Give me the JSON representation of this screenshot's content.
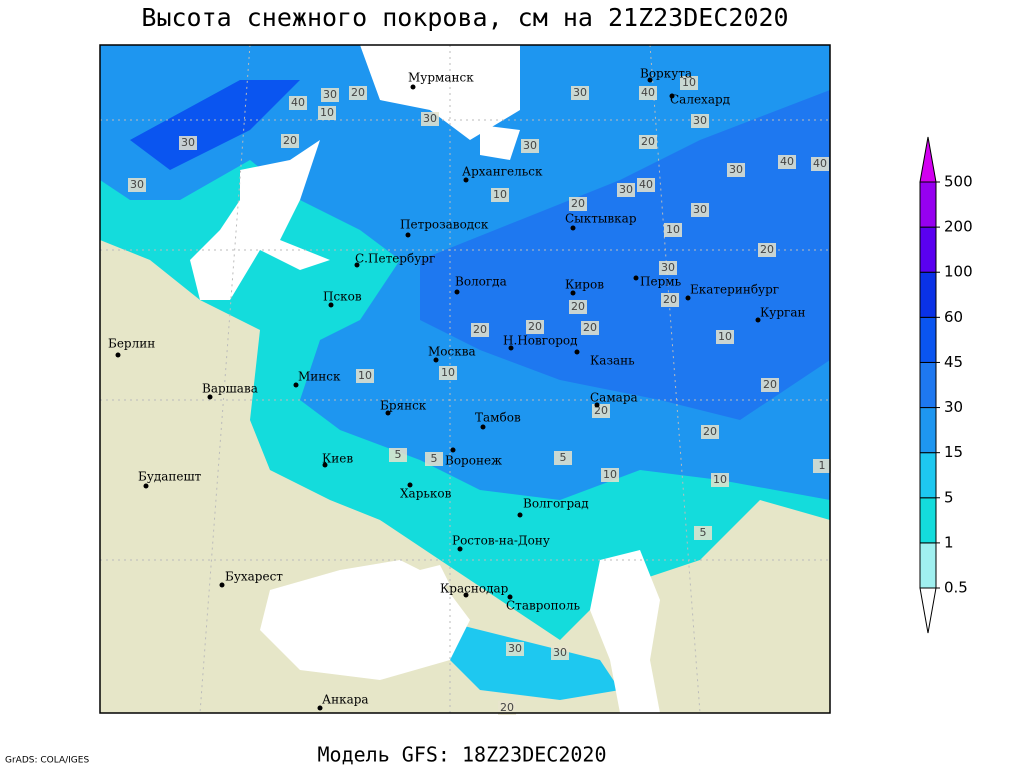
{
  "title": "Высота снежного покрова, см на 21Z23DEC2020",
  "footer": "Модель GFS: 18Z23DEC2020",
  "credit": "GrADS: COLA/IGES",
  "cities": [
    "Мурманск",
    "Воркута",
    "Салехард",
    "Архангельск",
    "Сыктывкар",
    "Петрозаводск",
    "С.Петербург",
    "Вологда",
    "Киров",
    "Пермь",
    "Екатеринбург",
    "Курган",
    "Псков",
    "Н.Новгород",
    "Москва",
    "Казань",
    "Берлин",
    "Минск",
    "Варшава",
    "Самара",
    "Брянск",
    "Тамбов",
    "Киев",
    "Воронеж",
    "Будапешт",
    "Харьков",
    "Волгоград",
    "Ростов-на-Дону",
    "Бухарест",
    "Краснодар",
    "Ставрополь",
    "Анкара"
  ],
  "contour_labels": [
    30,
    40,
    20,
    10,
    30,
    20,
    30,
    30,
    30,
    40,
    10,
    30,
    30,
    10,
    20,
    20,
    30,
    40,
    40,
    30,
    40,
    30,
    10,
    20,
    30,
    20,
    20,
    20,
    20,
    20,
    10,
    20,
    10,
    10,
    20,
    20,
    5,
    5,
    5,
    10,
    10,
    1,
    5,
    30,
    30,
    20
  ],
  "colorbar": {
    "levels": [
      0.5,
      1,
      5,
      15,
      30,
      45,
      60,
      100,
      200,
      500
    ],
    "colors": [
      "#ffffff",
      "#a0f0f0",
      "#14dcdc",
      "#1ec8f0",
      "#1e96f0",
      "#1e78f0",
      "#0a55f0",
      "#0a32e6",
      "#5a00f0",
      "#9600f0",
      "#d200f0"
    ]
  }
}
